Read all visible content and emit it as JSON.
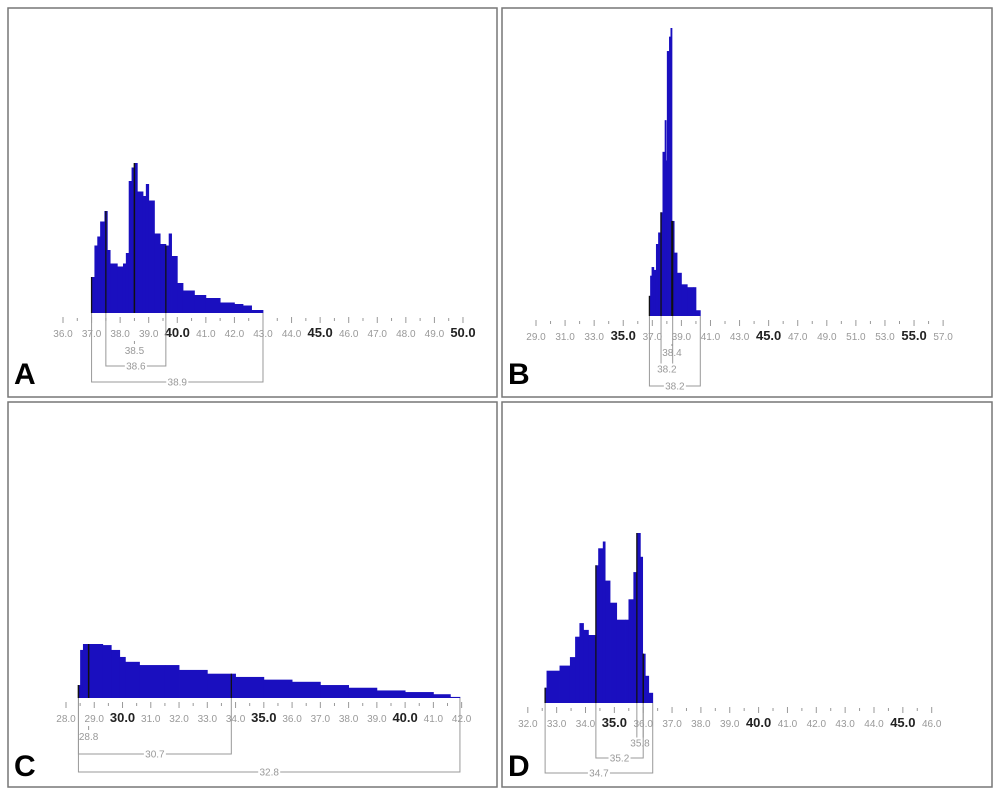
{
  "chart_data": [
    {
      "type": "bar",
      "panel_label": "A",
      "xlim": [
        36.0,
        50.0
      ],
      "tick_labels": [
        "36.0",
        "37.0",
        "38.0",
        "39.0",
        "40.0",
        "41.0",
        "42.0",
        "43.0",
        "44.0",
        "45.0",
        "46.0",
        "47.0",
        "48.0",
        "49.0",
        "50.0"
      ],
      "bold_tick_labels": [
        "40.0",
        "45.0",
        "50.0"
      ],
      "bar_color": "#1a0fbf",
      "histogram": {
        "x": [
          37.0,
          37.1,
          37.2,
          37.3,
          37.45,
          37.55,
          37.65,
          37.9,
          38.1,
          38.2,
          38.3,
          38.4,
          38.5,
          38.6,
          38.8,
          38.9,
          39.0,
          39.2,
          39.4,
          39.6,
          39.7,
          39.8,
          40.0,
          40.2,
          40.6,
          41.0,
          41.5,
          42.0,
          42.3,
          42.6,
          43.0
        ],
        "relative_height": [
          0.24,
          0.45,
          0.51,
          0.61,
          0.68,
          0.42,
          0.33,
          0.31,
          0.33,
          0.4,
          0.88,
          0.97,
          1.0,
          0.81,
          0.78,
          0.86,
          0.75,
          0.53,
          0.46,
          0.45,
          0.53,
          0.38,
          0.2,
          0.15,
          0.12,
          0.1,
          0.07,
          0.06,
          0.05,
          0.02,
          0
        ]
      },
      "annotations": [
        {
          "label": "38.5",
          "from": 38.5,
          "to": 38.5
        },
        {
          "label": "38.6",
          "from": 37.5,
          "to": 39.6
        },
        {
          "label": "38.9",
          "from": 37.0,
          "to": 43.0
        }
      ]
    },
    {
      "type": "bar",
      "panel_label": "B",
      "xlim": [
        29.0,
        57.0
      ],
      "tick_labels": [
        "29.0",
        "31.0",
        "33.0",
        "35.0",
        "37.0",
        "39.0",
        "41.0",
        "43.0",
        "45.0",
        "47.0",
        "49.0",
        "51.0",
        "53.0",
        "55.0",
        "57.0"
      ],
      "bold_tick_labels": [
        "35.0",
        "45.0",
        "55.0"
      ],
      "bar_color": "#1a0fbf",
      "histogram": {
        "x": [
          36.8,
          36.85,
          36.95,
          37.1,
          37.25,
          37.4,
          37.55,
          37.7,
          37.85,
          37.95,
          38.0,
          38.15,
          38.25,
          38.35,
          38.5,
          38.7,
          39.0,
          39.4,
          39.8,
          40.0,
          40.3
        ],
        "relative_height": [
          0.07,
          0.14,
          0.17,
          0.16,
          0.25,
          0.29,
          0.36,
          0.57,
          0.68,
          0.54,
          0.92,
          0.97,
          1.0,
          0.33,
          0.22,
          0.15,
          0.11,
          0.1,
          0.1,
          0.02,
          0
        ]
      },
      "annotations": [
        {
          "label": "38.4",
          "from": 38.35,
          "to": 38.35
        },
        {
          "label": "38.2",
          "from": 37.6,
          "to": 38.4
        },
        {
          "label": "38.2",
          "from": 36.8,
          "to": 40.3
        }
      ]
    },
    {
      "type": "bar",
      "panel_label": "C",
      "xlim": [
        28.0,
        42.0
      ],
      "tick_labels": [
        "28.0",
        "29.0",
        "30.0",
        "31.0",
        "32.0",
        "33.0",
        "34.0",
        "35.0",
        "36.0",
        "37.0",
        "38.0",
        "39.0",
        "40.0",
        "41.0",
        "42.0"
      ],
      "bold_tick_labels": [
        "30.0",
        "35.0",
        "40.0"
      ],
      "bar_color": "#1a0fbf",
      "histogram": {
        "x": [
          28.44,
          28.5,
          28.6,
          29.3,
          29.6,
          29.9,
          30.1,
          30.6,
          31.5,
          32.0,
          33.0,
          34.0,
          35.0,
          36.0,
          37.0,
          38.0,
          39.0,
          40.0,
          41.0,
          41.6,
          41.94
        ],
        "relative_height": [
          0.24,
          0.89,
          1.0,
          0.98,
          0.89,
          0.76,
          0.67,
          0.61,
          0.61,
          0.52,
          0.45,
          0.39,
          0.34,
          0.3,
          0.24,
          0.19,
          0.14,
          0.11,
          0.07,
          0.02,
          0
        ]
      },
      "annotations": [
        {
          "label": "28.8",
          "from": 28.8,
          "to": 28.8
        },
        {
          "label": "30.7",
          "from": 28.44,
          "to": 33.85
        },
        {
          "label": "32.8",
          "from": 28.44,
          "to": 41.94
        }
      ]
    },
    {
      "type": "bar",
      "panel_label": "D",
      "xlim": [
        32.0,
        46.0
      ],
      "tick_labels": [
        "32.0",
        "33.0",
        "34.0",
        "35.0",
        "36.0",
        "37.0",
        "38.0",
        "39.0",
        "40.0",
        "41.0",
        "42.0",
        "43.0",
        "44.0",
        "45.0",
        "46.0"
      ],
      "bold_tick_labels": [
        "35.0",
        "40.0",
        "45.0"
      ],
      "bar_color": "#1a0fbf",
      "histogram": {
        "x": [
          32.6,
          32.65,
          33.1,
          33.46,
          33.64,
          33.79,
          33.93,
          34.1,
          34.33,
          34.36,
          34.44,
          34.6,
          34.68,
          34.85,
          35.08,
          35.37,
          35.49,
          35.66,
          35.78,
          35.9,
          35.98,
          36.07,
          36.19,
          36.33
        ],
        "relative_height": [
          0.09,
          0.19,
          0.22,
          0.27,
          0.39,
          0.47,
          0.43,
          0.4,
          0.39,
          0.81,
          0.91,
          0.95,
          0.72,
          0.59,
          0.49,
          0.49,
          0.61,
          0.77,
          1.0,
          0.86,
          0.29,
          0.16,
          0.06,
          0
        ]
      },
      "annotations": [
        {
          "label": "35.8",
          "from": 35.78,
          "to": 36.0
        },
        {
          "label": "35.2",
          "from": 34.36,
          "to": 36.0
        },
        {
          "label": "34.7",
          "from": 32.6,
          "to": 36.33
        }
      ]
    }
  ]
}
